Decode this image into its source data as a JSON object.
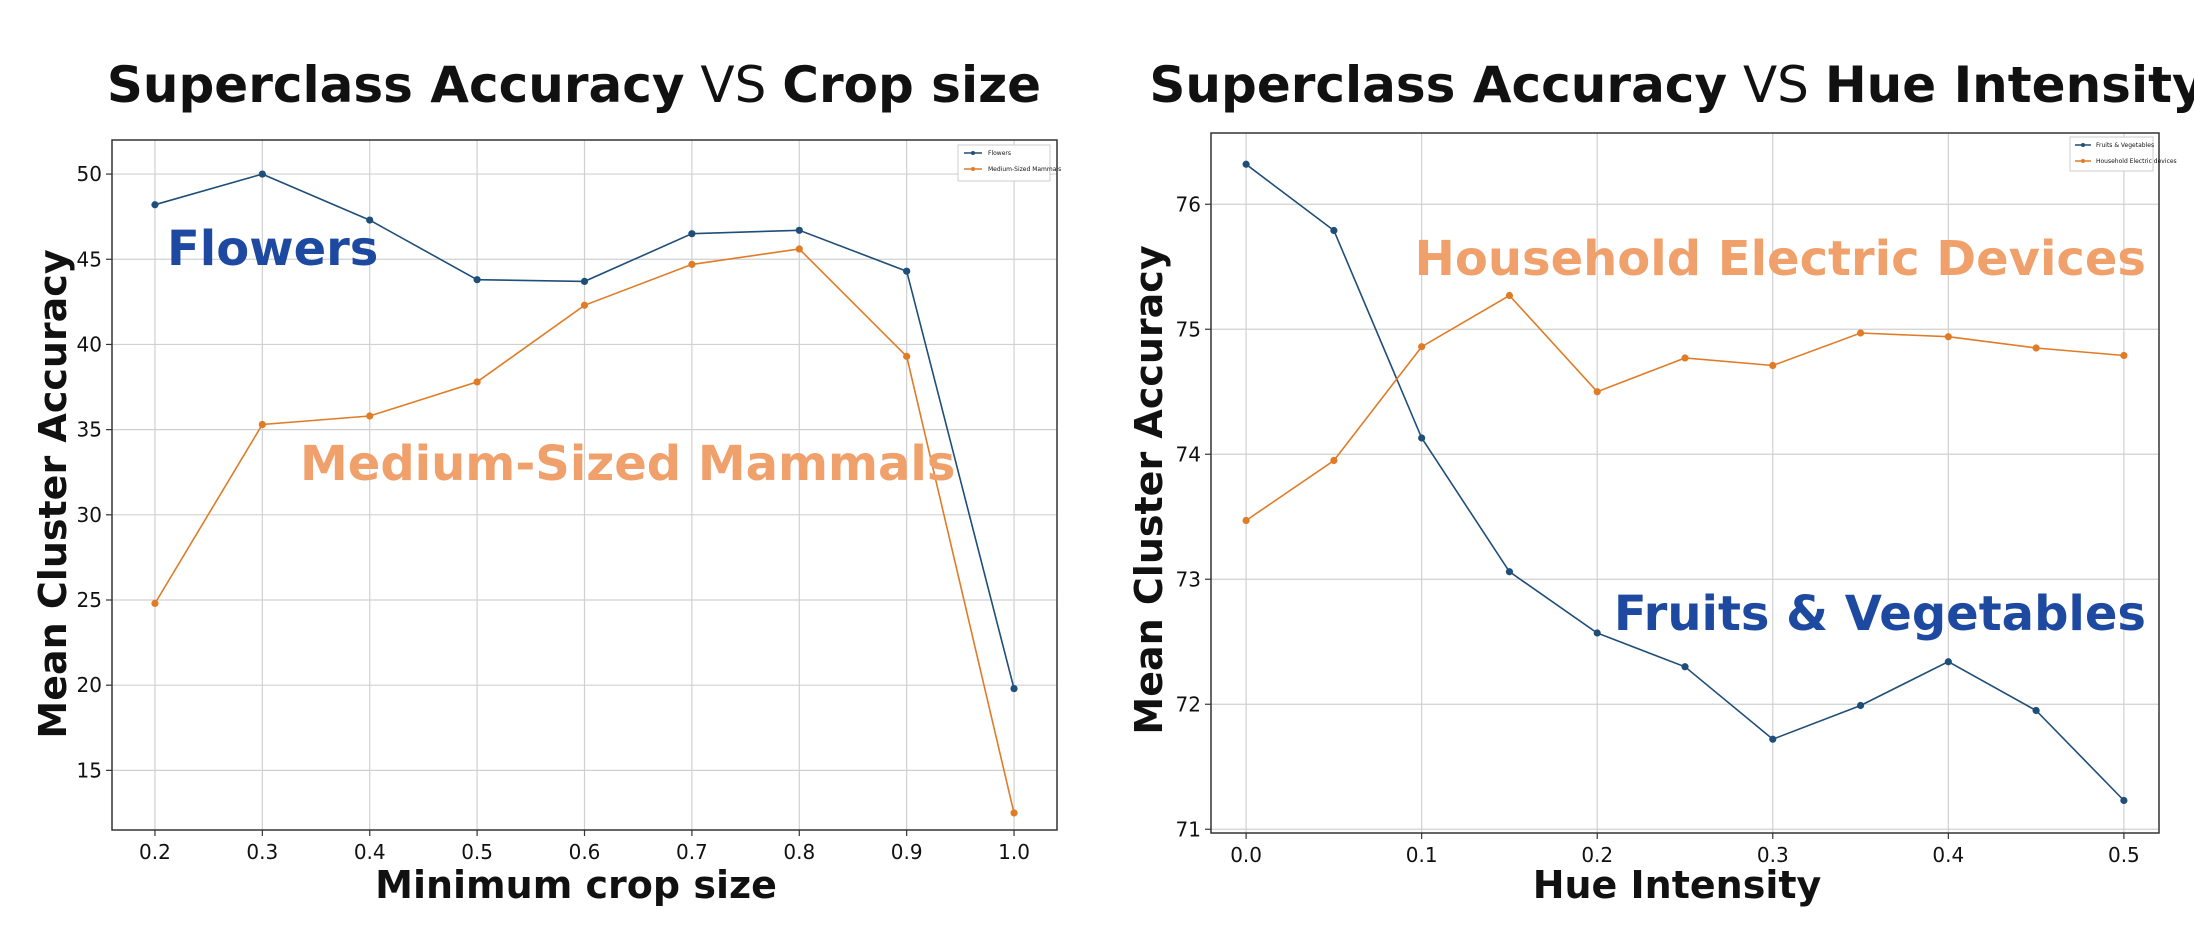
{
  "colors": {
    "blue": "#1f4e79",
    "orange": "#e07b26",
    "annotation_blue": "#1d4aa0",
    "annotation_orange": "#f0a06a"
  },
  "chart_data": [
    {
      "type": "line",
      "title_bold_1": "Superclass Accuracy",
      "title_vs": "VS",
      "title_bold_2": "Crop size",
      "xlabel": "Minimum crop size",
      "ylabel": "Mean Cluster Accuracy",
      "xlim": [
        0.16,
        1.04
      ],
      "ylim": [
        11.5,
        52.0
      ],
      "xticks": [
        "0.2",
        "0.3",
        "0.4",
        "0.5",
        "0.6",
        "0.7",
        "0.8",
        "0.9",
        "1.0"
      ],
      "yticks": [
        "15",
        "20",
        "25",
        "30",
        "35",
        "40",
        "45",
        "50"
      ],
      "grid": true,
      "legend_position": "top-right",
      "x": [
        0.2,
        0.3,
        0.4,
        0.5,
        0.6,
        0.7,
        0.8,
        0.9,
        1.0
      ],
      "series": [
        {
          "name": "Flowers",
          "color": "#1f4e79",
          "values": [
            48.2,
            50.0,
            47.3,
            43.8,
            43.7,
            46.5,
            46.7,
            44.3,
            19.8
          ]
        },
        {
          "name": "Medium-Sized Mammals",
          "color": "#e07b26",
          "values": [
            24.8,
            35.3,
            35.8,
            37.8,
            42.3,
            44.7,
            45.6,
            39.3,
            12.5
          ]
        }
      ],
      "annotations": [
        {
          "text": "Flowers",
          "color": "#1d4aa0"
        },
        {
          "text": "Medium-Sized Mammals",
          "color": "#f0a06a"
        }
      ]
    },
    {
      "type": "line",
      "title_bold_1": "Superclass Accuracy",
      "title_vs": "VS",
      "title_bold_2": "Hue Intensity",
      "xlabel": "Hue Intensity",
      "ylabel": "Mean Cluster Accuracy",
      "xlim": [
        -0.02,
        0.52
      ],
      "ylim": [
        70.97,
        76.57
      ],
      "xticks": [
        "0.0",
        "0.1",
        "0.2",
        "0.3",
        "0.4",
        "0.5"
      ],
      "yticks": [
        "71",
        "72",
        "73",
        "74",
        "75",
        "76"
      ],
      "grid": true,
      "legend_position": "top-right",
      "x": [
        0.0,
        0.05,
        0.1,
        0.15,
        0.2,
        0.25,
        0.3,
        0.35,
        0.4,
        0.45,
        0.5
      ],
      "series": [
        {
          "name": "Fruits & Vegetables",
          "color": "#1f4e79",
          "values": [
            76.32,
            75.79,
            74.13,
            73.06,
            72.57,
            72.3,
            71.72,
            71.99,
            72.34,
            71.95,
            71.23
          ]
        },
        {
          "name": "Household Electric devices",
          "color": "#e07b26",
          "values": [
            73.47,
            73.95,
            74.86,
            75.27,
            74.5,
            74.77,
            74.71,
            74.97,
            74.94,
            74.85,
            74.79
          ]
        }
      ],
      "annotations": [
        {
          "text": "Household Electric Devices",
          "color": "#f0a06a"
        },
        {
          "text": "Fruits & Vegetables",
          "color": "#1d4aa0"
        }
      ]
    }
  ]
}
